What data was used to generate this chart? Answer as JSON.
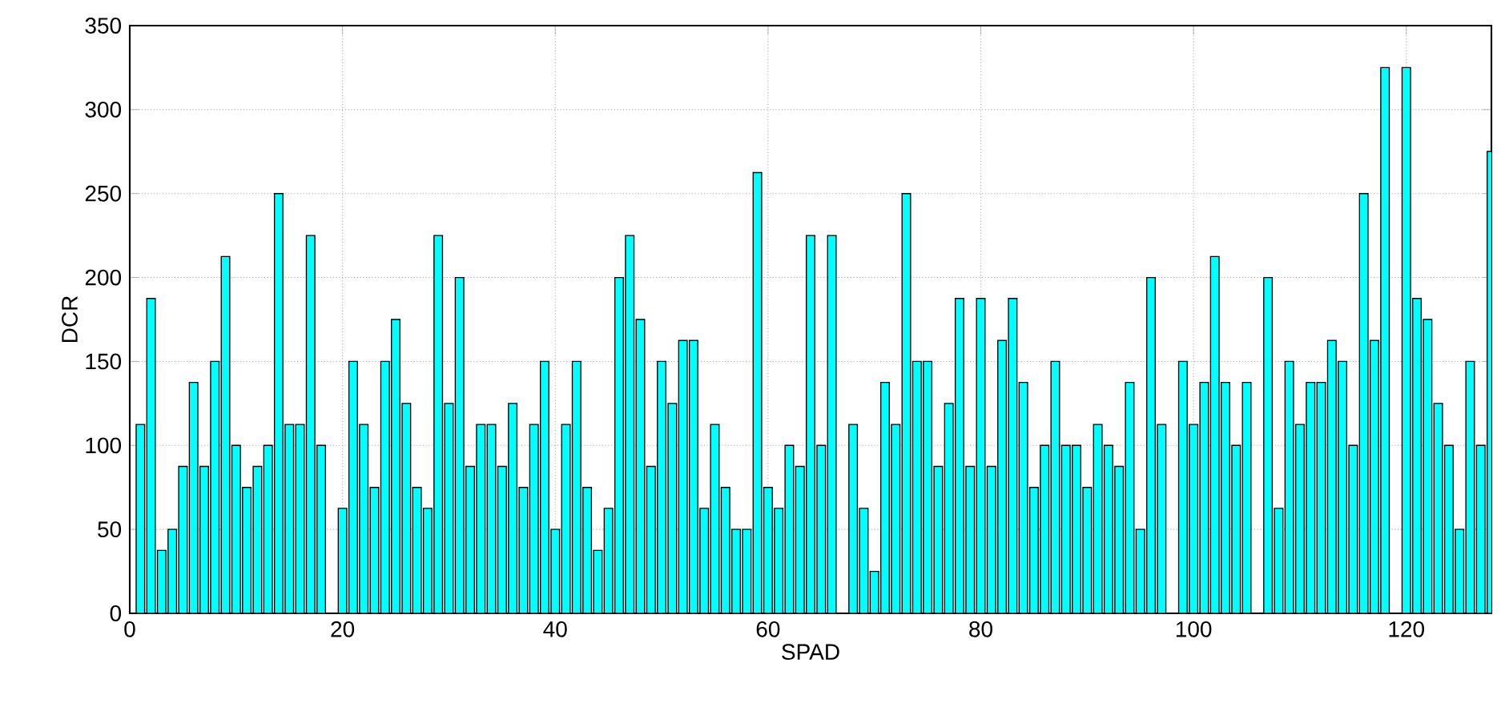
{
  "chart_data": {
    "type": "bar",
    "xlabel": "SPAD",
    "ylabel": "DCR",
    "x": [
      1,
      2,
      3,
      4,
      5,
      6,
      7,
      8,
      9,
      10,
      11,
      12,
      13,
      14,
      15,
      16,
      17,
      18,
      19,
      20,
      21,
      22,
      23,
      24,
      25,
      26,
      27,
      28,
      29,
      30,
      31,
      32,
      33,
      34,
      35,
      36,
      37,
      38,
      39,
      40,
      41,
      42,
      43,
      44,
      45,
      46,
      47,
      48,
      49,
      50,
      51,
      52,
      53,
      54,
      55,
      56,
      57,
      58,
      59,
      60,
      61,
      62,
      63,
      64,
      65,
      66,
      67,
      68,
      69,
      70,
      71,
      72,
      73,
      74,
      75,
      76,
      77,
      78,
      79,
      80,
      81,
      82,
      83,
      84,
      85,
      86,
      87,
      88,
      89,
      90,
      91,
      92,
      93,
      94,
      95,
      96,
      97,
      98,
      99,
      100,
      101,
      102,
      103,
      104,
      105,
      106,
      107,
      108,
      109,
      110,
      111,
      112,
      113,
      114,
      115,
      116,
      117,
      118,
      119,
      120,
      121,
      122,
      123,
      124,
      125,
      126,
      127,
      128
    ],
    "values": [
      112.5,
      187.5,
      37.5,
      50,
      87.5,
      137.5,
      87.5,
      150,
      212.5,
      100,
      75,
      87.5,
      100,
      250,
      112.5,
      112.5,
      225,
      100,
      null,
      62.5,
      150,
      112.5,
      75,
      150,
      175,
      125,
      75,
      62.5,
      225,
      125,
      200,
      87.5,
      112.5,
      112.5,
      87.5,
      125,
      75,
      112.5,
      150,
      50,
      112.5,
      150,
      75,
      37.5,
      62.5,
      200,
      225,
      175,
      87.5,
      150,
      125,
      162.5,
      162.5,
      62.5,
      112.5,
      75,
      50,
      50,
      262.5,
      75,
      62.5,
      100,
      87.5,
      225,
      100,
      225,
      null,
      112.5,
      62.5,
      25,
      137.5,
      112.5,
      250,
      150,
      150,
      87.5,
      125,
      187.5,
      87.5,
      187.5,
      87.5,
      162.5,
      187.5,
      137.5,
      75,
      100,
      150,
      100,
      100,
      75,
      112.5,
      100,
      87.5,
      137.5,
      50,
      200,
      112.5,
      null,
      150,
      112.5,
      137.5,
      212.5,
      137.5,
      100,
      137.5,
      null,
      200,
      62.5,
      150,
      112.5,
      137.5,
      137.5,
      162.5,
      150,
      100,
      250,
      162.5,
      325,
      null,
      325,
      187.5,
      175,
      125,
      100,
      50,
      150,
      100,
      275
    ],
    "color": "#00ffff",
    "xlim": [
      0,
      128
    ],
    "xticks": [
      0,
      20,
      40,
      60,
      80,
      100,
      120
    ],
    "ylim": [
      0,
      350
    ],
    "yticks": [
      0,
      50,
      100,
      150,
      200,
      250,
      300,
      350
    ],
    "grid": true
  }
}
